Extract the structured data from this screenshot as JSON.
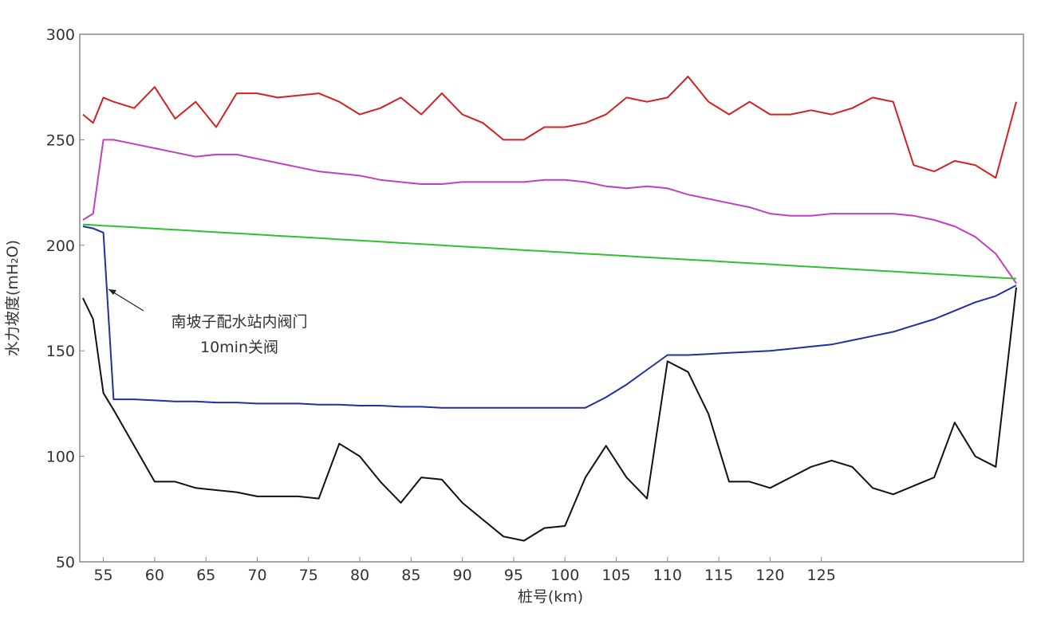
{
  "chart_data": {
    "type": "line",
    "xlabel": "桩号(km)",
    "ylabel": "水力坡度(mH₂O)",
    "annotation": [
      "南坡子配水站内阀门",
      "10min关阀"
    ],
    "xlim": [
      52.7,
      144.7
    ],
    "ylim": [
      50,
      300
    ],
    "xticks": [
      55,
      60,
      65,
      70,
      75,
      80,
      85,
      90,
      95,
      100,
      105,
      110,
      115,
      120,
      125
    ],
    "yticks": [
      50,
      100,
      150,
      200,
      250,
      300
    ],
    "x": [
      53,
      54,
      55,
      56,
      58,
      60,
      62,
      64,
      66,
      68,
      70,
      72,
      74,
      76,
      78,
      80,
      82,
      84,
      86,
      88,
      90,
      92,
      94,
      96,
      98,
      100,
      102,
      104,
      106,
      108,
      110,
      112,
      114,
      116,
      118,
      120,
      122,
      124,
      126,
      128,
      130,
      132,
      134,
      136,
      138,
      140,
      142,
      144
    ],
    "series": [
      {
        "color": "#d42020",
        "values": [
          262,
          258,
          270,
          268,
          265,
          275,
          260,
          268,
          256,
          272,
          272,
          270,
          271,
          272,
          268,
          262,
          265,
          270,
          262,
          272,
          262,
          258,
          250,
          250,
          256,
          256,
          258,
          262,
          270,
          268,
          270,
          280,
          268,
          262,
          268,
          262,
          262,
          264,
          262,
          265,
          270,
          268,
          238,
          235,
          240,
          238,
          232,
          268
        ]
      },
      {
        "color": "#c040c0",
        "values": [
          212,
          215,
          250,
          250,
          248,
          246,
          244,
          242,
          243,
          243,
          241,
          239,
          237,
          235,
          234,
          233,
          231,
          230,
          229,
          229,
          230,
          230,
          230,
          230,
          231,
          231,
          230,
          228,
          227,
          228,
          227,
          224,
          222,
          220,
          218,
          215,
          214,
          214,
          215,
          215,
          215,
          215,
          214,
          212,
          209,
          204,
          196,
          182
        ]
      },
      {
        "color": "#30c030",
        "values": [
          209.9,
          209.6,
          209.3,
          209.1,
          208.5,
          207.9,
          207.4,
          206.8,
          206.2,
          205.7,
          205.1,
          204.5,
          204.0,
          203.4,
          202.8,
          202.3,
          201.7,
          201.1,
          200.6,
          200.0,
          199.4,
          198.9,
          198.3,
          197.7,
          197.2,
          196.6,
          196.0,
          195.5,
          194.9,
          194.3,
          193.8,
          193.2,
          192.7,
          192.1,
          191.5,
          191.0,
          190.4,
          189.8,
          189.3,
          188.7,
          188.1,
          187.6,
          187.0,
          186.4,
          185.9,
          185.3,
          184.7,
          184.2
        ]
      },
      {
        "color": "#2030a0",
        "values": [
          209,
          208,
          206,
          127,
          127,
          126.5,
          126,
          126,
          125.5,
          125.5,
          125,
          125,
          125,
          124.5,
          124.5,
          124,
          124,
          123.5,
          123.5,
          123,
          123,
          123,
          123,
          123,
          123,
          123,
          123,
          128,
          134,
          141,
          148,
          148,
          148.5,
          149,
          149.5,
          150,
          151,
          152,
          153,
          155,
          157,
          159,
          162,
          165,
          169,
          173,
          176,
          181
        ]
      },
      {
        "color": "#111111",
        "values": [
          175,
          165,
          130,
          122,
          105,
          88,
          88,
          85,
          84,
          83,
          81,
          81,
          81,
          80,
          106,
          100,
          88,
          78,
          90,
          89,
          78,
          70,
          62,
          60,
          66,
          67,
          90,
          105,
          90,
          80,
          145,
          140,
          120,
          88,
          88,
          85,
          90,
          95,
          98,
          95,
          85,
          82,
          86,
          90,
          116,
          100,
          95,
          180
        ]
      }
    ]
  }
}
